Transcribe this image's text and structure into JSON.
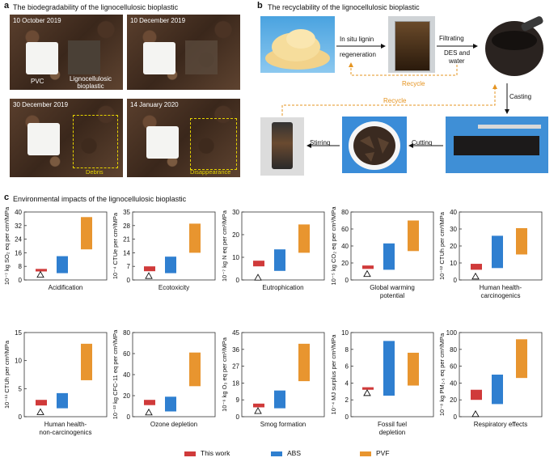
{
  "panel_a": {
    "letter": "a",
    "title": "The biodegradability of the lignocellulosic bioplastic",
    "photos": [
      {
        "date": "10 October 2019"
      },
      {
        "date": "10 December 2019"
      },
      {
        "date": "30 December 2019"
      },
      {
        "date": "14 January 2020"
      }
    ],
    "label_pvc": "PVC",
    "label_bioplastic": "Lignocellulosic bioplastic",
    "label_debris": "Debris",
    "label_disappearance": "Disappearance"
  },
  "panel_b": {
    "letter": "b",
    "title": "The recyclability of the lignocellulosic bioplastic",
    "step_insitu": "In situ lignin",
    "step_regeneration": "regeneration",
    "step_filtrating": "Filtrating",
    "step_des": "DES and",
    "step_water": "water",
    "recycle_1": "Recycle",
    "recycle_2": "Recycle",
    "step_casting": "Casting",
    "step_cutting": "Cutting",
    "step_stirring": "Stirring"
  },
  "panel_c": {
    "letter": "c",
    "title": "Environmental impacts of the lignocellulosic bioplastic",
    "legend": [
      {
        "name": "This work",
        "color": "#d03a3a"
      },
      {
        "name": "ABS",
        "color": "#2f7fd0"
      },
      {
        "name": "PVF",
        "color": "#e8952f"
      }
    ]
  },
  "chart_data": [
    {
      "type": "bar",
      "title": "Acidification",
      "ylabel": "10⁻⁷ kg SO₂ eq per cm³/MPa",
      "ylim": [
        0,
        40
      ],
      "yticks": [
        0,
        8,
        16,
        24,
        32,
        40
      ],
      "categories": [
        "This work",
        "ABS",
        "PVF"
      ],
      "ranges": [
        [
          5,
          6.5
        ],
        [
          4,
          14
        ],
        [
          18,
          37
        ]
      ],
      "marker": 3
    },
    {
      "type": "bar",
      "title": "Ecotoxicity",
      "ylabel": "10⁻⁴ CTUe per cm³/MPa",
      "ylim": [
        0,
        35
      ],
      "yticks": [
        0,
        7,
        14,
        21,
        28,
        35
      ],
      "categories": [
        "This work",
        "ABS",
        "PVF"
      ],
      "ranges": [
        [
          4.5,
          7
        ],
        [
          3.5,
          12
        ],
        [
          14,
          29
        ]
      ],
      "marker": 2
    },
    {
      "type": "bar",
      "title": "Eutrophication",
      "ylabel": "10⁻⁷ kg N eq per cm³/MPa",
      "ylim": [
        0,
        30
      ],
      "yticks": [
        0,
        10,
        20,
        30
      ],
      "categories": [
        "This work",
        "ABS",
        "PVF"
      ],
      "ranges": [
        [
          6,
          8.5
        ],
        [
          4,
          13.5
        ],
        [
          12,
          24.5
        ]
      ],
      "marker": 1
    },
    {
      "type": "bar",
      "title": "Global warming potential",
      "title_lines": [
        "Global warming",
        "potential"
      ],
      "ylabel": "10⁻⁵ kg CO₂ eq per cm³/MPa",
      "ylim": [
        0,
        80
      ],
      "yticks": [
        0,
        20,
        40,
        60,
        80
      ],
      "categories": [
        "This work",
        "ABS",
        "PVF"
      ],
      "ranges": [
        [
          13,
          17
        ],
        [
          12,
          43
        ],
        [
          34,
          70
        ]
      ],
      "marker": 7
    },
    {
      "type": "bar",
      "title": "Human health-carcinogenics",
      "title_lines": [
        "Human health-",
        "carcinogenics"
      ],
      "ylabel": "10⁻¹² CTUh per cm³/MPa",
      "ylim": [
        0,
        40
      ],
      "yticks": [
        0,
        10,
        20,
        30,
        40
      ],
      "categories": [
        "This work",
        "ABS",
        "PVF"
      ],
      "ranges": [
        [
          6,
          9.5
        ],
        [
          7,
          26
        ],
        [
          15,
          30.5
        ]
      ],
      "marker": 2
    },
    {
      "type": "bar",
      "title": "Human health-non-carcinogenics",
      "title_lines": [
        "Human health-",
        "non-carcinogenics"
      ],
      "ylabel": "10⁻¹¹ CTUh per cm³/MPa",
      "ylim": [
        0,
        15
      ],
      "yticks": [
        0,
        5,
        10,
        15
      ],
      "categories": [
        "This work",
        "ABS",
        "PVF"
      ],
      "ranges": [
        [
          2,
          3
        ],
        [
          1.5,
          4.2
        ],
        [
          6.5,
          13
        ]
      ],
      "marker": 0.8
    },
    {
      "type": "bar",
      "title": "Ozone depletion",
      "ylabel": "10⁻¹³ kg CFC-11 eq per cm³/MPa",
      "ylim": [
        0,
        80
      ],
      "yticks": [
        0,
        20,
        40,
        60,
        80
      ],
      "categories": [
        "This work",
        "ABS",
        "PVF"
      ],
      "ranges": [
        [
          11,
          16
        ],
        [
          5,
          19
        ],
        [
          29,
          61
        ]
      ],
      "marker": 4
    },
    {
      "type": "bar",
      "title": "Smog formation",
      "ylabel": "10⁻⁶ kg O₃ eq per cm³/MPa",
      "ylim": [
        0,
        45
      ],
      "yticks": [
        0,
        9,
        18,
        27,
        36,
        45
      ],
      "categories": [
        "This work",
        "ABS",
        "PVF"
      ],
      "ranges": [
        [
          5,
          7
        ],
        [
          4.5,
          14
        ],
        [
          19,
          39
        ]
      ],
      "marker": 3
    },
    {
      "type": "bar",
      "title": "Fossil fuel depletion",
      "title_lines": [
        "Fossil fuel",
        "depletion"
      ],
      "ylabel": "10⁻⁴ MJ surplus per cm³/MPa",
      "ylim": [
        0,
        10
      ],
      "yticks": [
        0,
        2,
        4,
        6,
        8,
        10
      ],
      "categories": [
        "This work",
        "ABS",
        "PVF"
      ],
      "ranges": [
        [
          3.2,
          3.5
        ],
        [
          2.5,
          9
        ],
        [
          3.7,
          7.6
        ]
      ],
      "marker": 2.8
    },
    {
      "type": "bar",
      "title": "Respiratory effects",
      "ylabel": "10⁻⁸ kg PM₂.₅ eq per cm³/MPa",
      "ylim": [
        0,
        100
      ],
      "yticks": [
        0,
        20,
        40,
        60,
        80,
        100
      ],
      "categories": [
        "This work",
        "ABS",
        "PVF"
      ],
      "ranges": [
        [
          20,
          32
        ],
        [
          15,
          50
        ],
        [
          46,
          92
        ]
      ],
      "marker": 3
    }
  ]
}
